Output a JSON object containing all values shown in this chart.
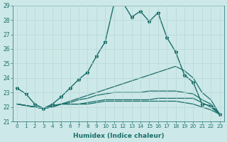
{
  "xlabel": "Humidex (Indice chaleur)",
  "xlim": [
    -0.5,
    23.5
  ],
  "ylim": [
    21,
    29
  ],
  "yticks": [
    21,
    22,
    23,
    24,
    25,
    26,
    27,
    28,
    29
  ],
  "xticks": [
    0,
    1,
    2,
    3,
    4,
    5,
    6,
    7,
    8,
    9,
    10,
    11,
    12,
    13,
    14,
    15,
    16,
    17,
    18,
    19,
    20,
    21,
    22,
    23
  ],
  "bg_color": "#cde8e8",
  "grid_color": "#b8d8d8",
  "line_color": "#1a6e6a",
  "lines": [
    {
      "data": [
        23.3,
        22.9,
        22.2,
        21.9,
        22.2,
        22.7,
        23.3,
        23.9,
        24.4,
        25.5,
        26.5,
        29.1,
        29.2,
        28.2,
        28.6,
        27.9,
        28.5,
        26.8,
        25.8,
        24.2,
        23.7,
        22.2,
        22.1,
        21.5
      ],
      "marker": true,
      "linewidth": 1.0
    },
    {
      "data": [
        22.2,
        22.1,
        22.0,
        21.9,
        22.1,
        22.2,
        22.2,
        22.2,
        22.3,
        22.4,
        22.5,
        22.5,
        22.5,
        22.5,
        22.5,
        22.5,
        22.6,
        22.6,
        22.6,
        22.6,
        22.6,
        22.3,
        22.0,
        21.5
      ],
      "marker": false,
      "linewidth": 0.9
    },
    {
      "data": [
        22.2,
        22.1,
        22.0,
        21.9,
        22.0,
        22.2,
        22.3,
        22.5,
        22.6,
        22.8,
        22.9,
        23.0,
        23.0,
        23.0,
        23.0,
        23.1,
        23.1,
        23.1,
        23.1,
        23.0,
        22.9,
        22.5,
        22.2,
        21.5
      ],
      "marker": false,
      "linewidth": 0.9
    },
    {
      "data": [
        22.2,
        22.1,
        22.0,
        21.9,
        22.0,
        22.2,
        22.2,
        22.2,
        22.2,
        22.3,
        22.4,
        22.4,
        22.4,
        22.4,
        22.4,
        22.4,
        22.4,
        22.4,
        22.4,
        22.3,
        22.2,
        22.0,
        21.8,
        21.5
      ],
      "marker": false,
      "linewidth": 0.9
    },
    {
      "data": [
        22.2,
        22.1,
        22.0,
        21.9,
        22.0,
        22.2,
        22.4,
        22.6,
        22.8,
        23.0,
        23.2,
        23.4,
        23.6,
        23.8,
        24.0,
        24.2,
        24.4,
        24.6,
        24.8,
        24.5,
        24.0,
        23.0,
        22.5,
        21.5
      ],
      "marker": false,
      "linewidth": 0.9
    }
  ]
}
